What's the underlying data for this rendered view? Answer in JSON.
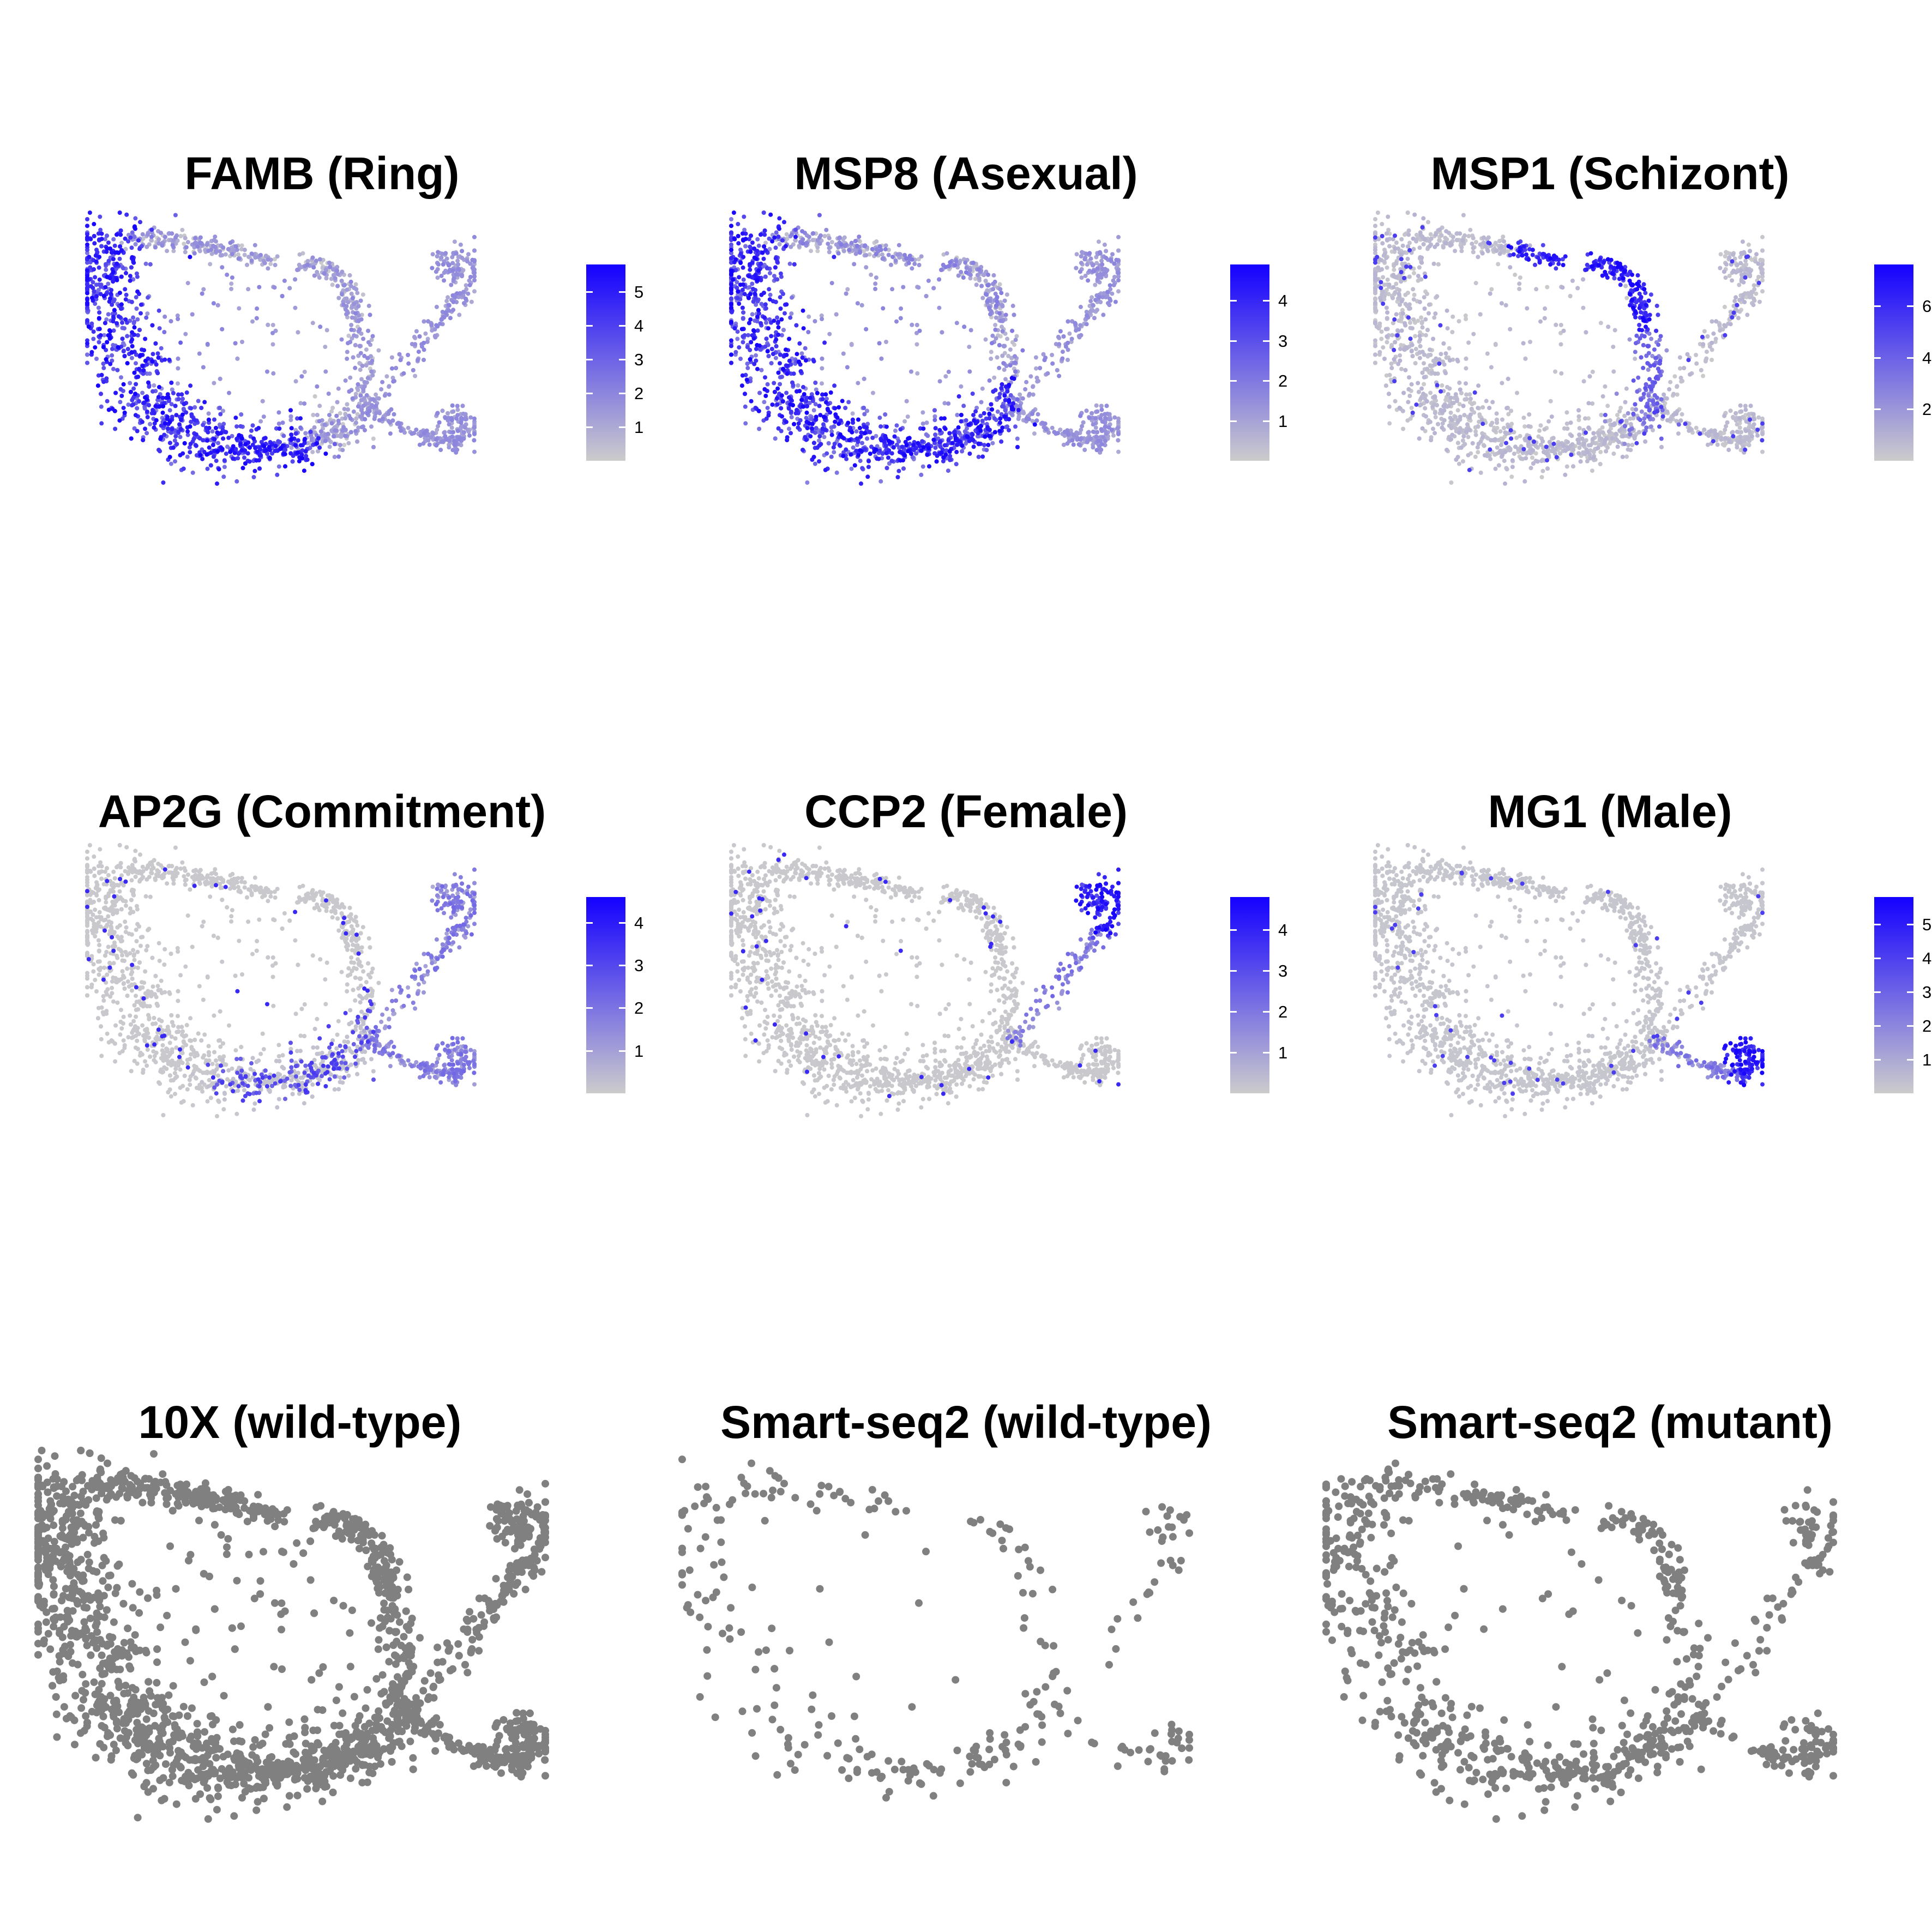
{
  "figure": {
    "colors": {
      "low": "#cccccc",
      "high": "#1400ff",
      "grey_points": "#808080",
      "background": "#ffffff"
    }
  },
  "chart_data": [
    {
      "type": "scatter",
      "title": "FAMB (Ring)",
      "color_mode": "expression",
      "pattern": "ring",
      "legend": {
        "type": "colorbar",
        "placement": "right",
        "ticks": [
          1,
          2,
          3,
          4,
          5
        ],
        "max": 5.8
      },
      "grid": false,
      "axes": "none"
    },
    {
      "type": "scatter",
      "title": "MSP8 (Asexual)",
      "color_mode": "expression",
      "pattern": "asexual",
      "legend": {
        "type": "colorbar",
        "placement": "right",
        "ticks": [
          1,
          2,
          3,
          4
        ],
        "max": 4.9
      },
      "grid": false,
      "axes": "none"
    },
    {
      "type": "scatter",
      "title": "MSP1 (Schizont)",
      "color_mode": "expression",
      "pattern": "schizont",
      "legend": {
        "type": "colorbar",
        "placement": "right",
        "ticks": [
          2,
          4,
          6
        ],
        "max": 7.6
      },
      "grid": false,
      "axes": "none"
    },
    {
      "type": "scatter",
      "title": "AP2G (Commitment)",
      "color_mode": "expression",
      "pattern": "commitment",
      "legend": {
        "type": "colorbar",
        "placement": "right",
        "ticks": [
          1,
          2,
          3,
          4
        ],
        "max": 4.6
      },
      "grid": false,
      "axes": "none"
    },
    {
      "type": "scatter",
      "title": "CCP2 (Female)",
      "color_mode": "expression",
      "pattern": "female",
      "legend": {
        "type": "colorbar",
        "placement": "right",
        "ticks": [
          1,
          2,
          3,
          4
        ],
        "max": 4.8
      },
      "grid": false,
      "axes": "none"
    },
    {
      "type": "scatter",
      "title": "MG1 (Male)",
      "color_mode": "expression",
      "pattern": "male",
      "legend": {
        "type": "colorbar",
        "placement": "right",
        "ticks": [
          1,
          2,
          3,
          4,
          5
        ],
        "max": 5.8
      },
      "grid": false,
      "axes": "none"
    },
    {
      "type": "scatter",
      "title": "10X (wild-type)",
      "color_mode": "grey",
      "pattern": "dataset-10x",
      "grid": false,
      "axes": "none"
    },
    {
      "type": "scatter",
      "title": "Smart-seq2 (wild-type)",
      "color_mode": "grey",
      "pattern": "dataset-ss2-wt",
      "grid": false,
      "axes": "none"
    },
    {
      "type": "scatter",
      "title": "Smart-seq2 (mutant)",
      "color_mode": "grey",
      "pattern": "dataset-ss2-mut",
      "grid": false,
      "axes": "none"
    }
  ]
}
